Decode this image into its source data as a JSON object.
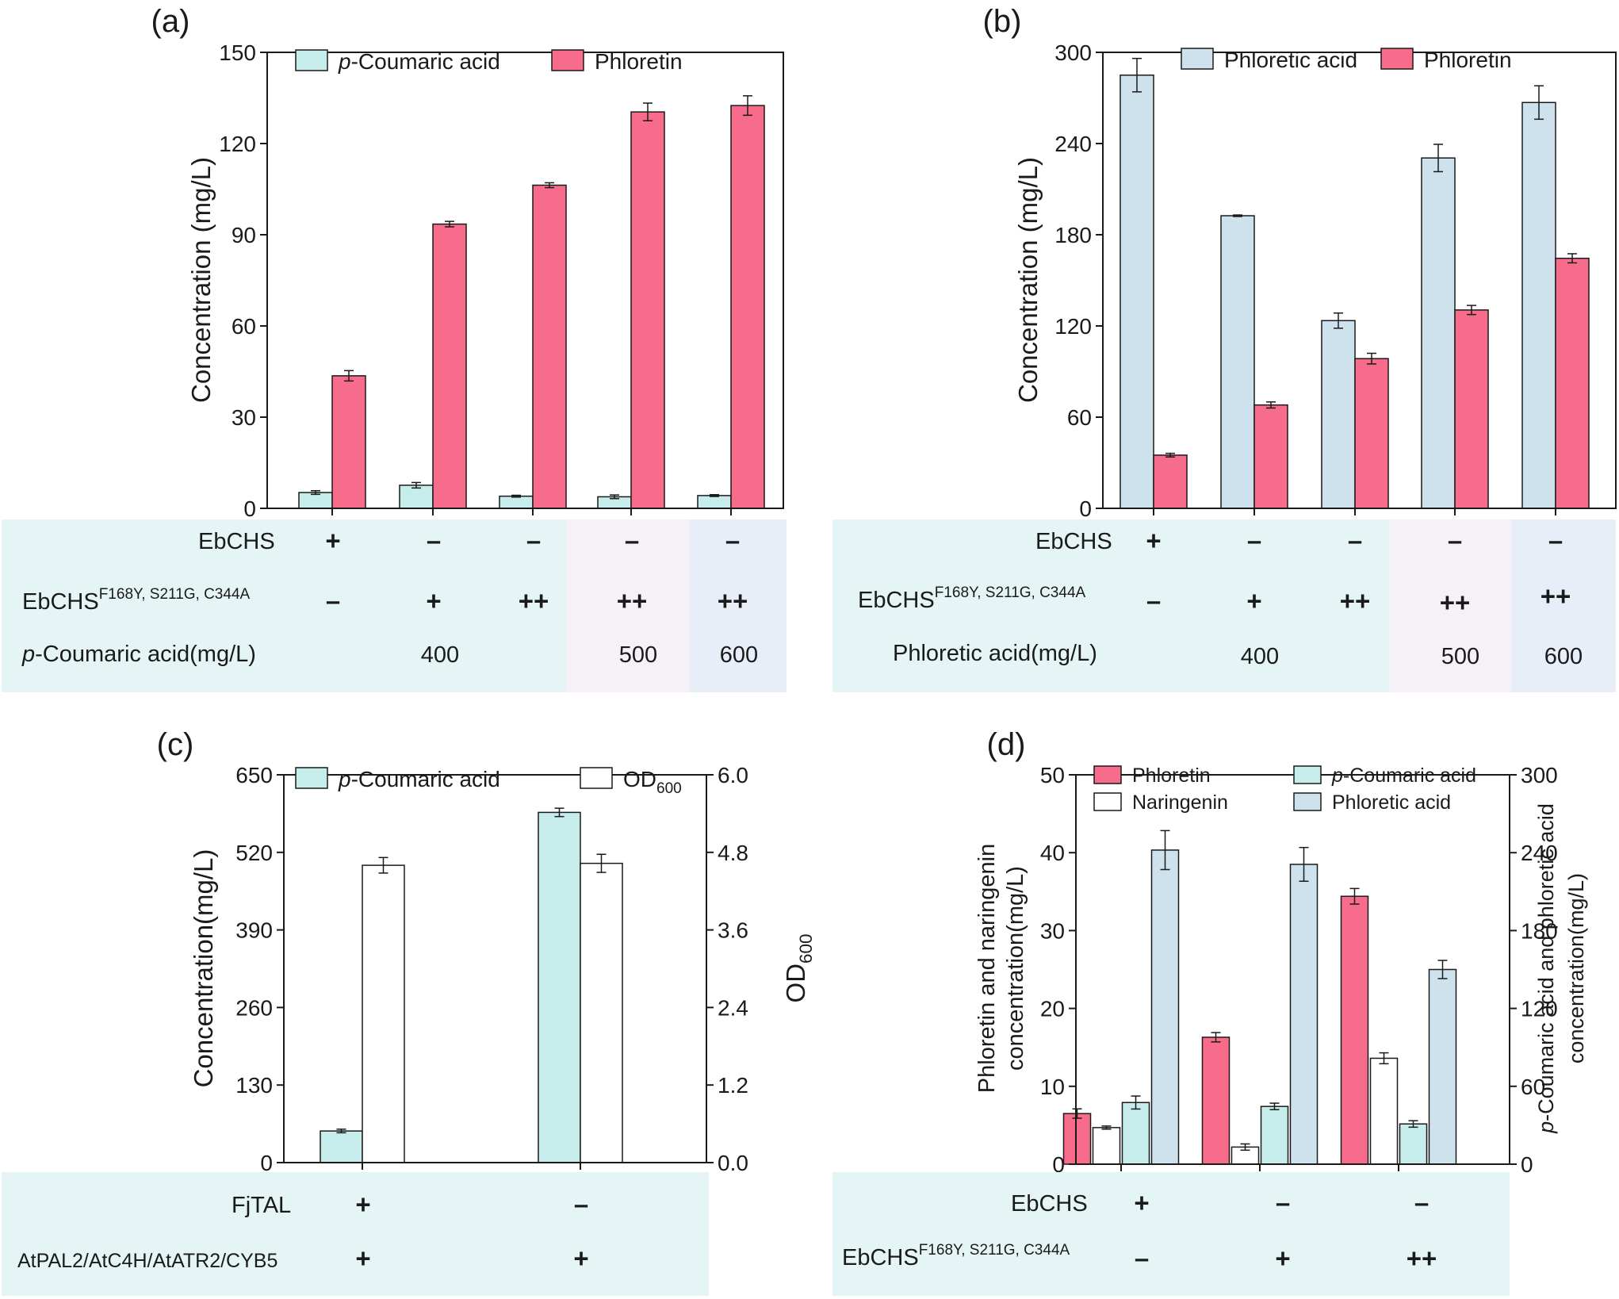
{
  "chart_data": [
    {
      "panel": "a",
      "type": "bar",
      "panel_label": "(a)",
      "ylabel": "Concentration (mg/L)",
      "ylim": [
        0,
        150
      ],
      "yticks": [
        "0",
        "30",
        "60",
        "90",
        "120",
        "150"
      ],
      "ytick_values": [
        0,
        30,
        60,
        90,
        120,
        150
      ],
      "legend": [
        {
          "name_italic": "p",
          "name": "-Coumaric acid",
          "color": "#c6ecec"
        },
        {
          "name_italic": "",
          "name": "Phloretin",
          "color": "#f76c8a"
        }
      ],
      "series": [
        {
          "name": "p-Coumaric acid",
          "color": "#c6ecec",
          "values": [
            5.2,
            7.6,
            4.0,
            3.8,
            4.2
          ],
          "errors": [
            0.6,
            0.9,
            0.3,
            0.6,
            0.3
          ]
        },
        {
          "name": "Phloretin",
          "color": "#f76c8a",
          "values": [
            43.6,
            93.5,
            106.3,
            130.4,
            132.5
          ],
          "errors": [
            1.7,
            0.9,
            0.8,
            2.9,
            3.2
          ]
        }
      ],
      "conditions": {
        "rows": [
          {
            "label": "EbCHS",
            "sup": "",
            "marks": [
              "+",
              "–",
              "–",
              "–",
              "–"
            ]
          },
          {
            "label": "EbCHS",
            "sup": "F168Y, S211G, C344A",
            "marks": [
              "–",
              "+",
              "++",
              "++",
              "++"
            ]
          }
        ],
        "conc_label_italic": "p",
        "conc_label": "-Coumaric acid(mg/L)",
        "conc_values": [
          "400",
          "500",
          "600"
        ]
      }
    },
    {
      "panel": "b",
      "type": "bar",
      "panel_label": "(b)",
      "ylabel": "Concentration (mg/L)",
      "ylim": [
        0,
        300
      ],
      "yticks": [
        "0",
        "60",
        "120",
        "180",
        "240",
        "300"
      ],
      "ytick_values": [
        0,
        60,
        120,
        180,
        240,
        300
      ],
      "legend": [
        {
          "name_italic": "",
          "name": "Phloretic acid",
          "color": "#cde2ed"
        },
        {
          "name_italic": "",
          "name": "Phloretin",
          "color": "#f76c8a"
        }
      ],
      "series": [
        {
          "name": "Phloretic acid",
          "color": "#cde2ed",
          "values": [
            285,
            192.5,
            123.5,
            230.5,
            267
          ],
          "errors": [
            11,
            0.5,
            5,
            9,
            11
          ]
        },
        {
          "name": "Phloretin",
          "color": "#f76c8a",
          "values": [
            35,
            68,
            98.5,
            130.5,
            164.5
          ],
          "errors": [
            1.2,
            2,
            3.5,
            3,
            3
          ]
        }
      ],
      "conditions": {
        "rows": [
          {
            "label": "EbCHS",
            "sup": "",
            "marks": [
              "+",
              "–",
              "–",
              "–",
              "–"
            ]
          },
          {
            "label": "EbCHS",
            "sup": "F168Y, S211G, C344A",
            "marks": [
              "–",
              "+",
              "++",
              "++",
              "++"
            ]
          }
        ],
        "conc_label_italic": "",
        "conc_label": "Phloretic acid(mg/L)",
        "conc_values": [
          "400",
          "500",
          "600"
        ]
      }
    },
    {
      "panel": "c",
      "type": "bar",
      "panel_label": "(c)",
      "ylabel": "Concentration(mg/L)",
      "ylim": [
        0,
        650
      ],
      "yticks": [
        "0",
        "130",
        "260",
        "390",
        "520",
        "650"
      ],
      "ytick_values": [
        0,
        130,
        260,
        390,
        520,
        650
      ],
      "y2label_main": "OD",
      "y2label_sub": "600",
      "y2lim": [
        0,
        6.0
      ],
      "y2ticks": [
        "0.0",
        "1.2",
        "2.4",
        "3.6",
        "4.8",
        "6.0"
      ],
      "y2tick_values": [
        0,
        1.2,
        2.4,
        3.6,
        4.8,
        6.0
      ],
      "legend": [
        {
          "name_italic": "p",
          "name": "-Coumaric acid",
          "sub": "",
          "color": "#c6ecec"
        },
        {
          "name_italic": "",
          "name": "OD",
          "sub": "600",
          "color": "#ffffff"
        }
      ],
      "series": [
        {
          "name": "p-Coumaric acid",
          "axis": "left",
          "color": "#c6ecec",
          "values": [
            53,
            587
          ],
          "errors": [
            3,
            7
          ]
        },
        {
          "name": "OD600",
          "axis": "right",
          "color": "#ffffff",
          "values": [
            4.6,
            4.63
          ],
          "errors": [
            0.12,
            0.14
          ]
        }
      ],
      "conditions": {
        "rows": [
          {
            "label": "FjTAL",
            "sup": "",
            "marks": [
              "+",
              "–"
            ]
          },
          {
            "label": "AtPAL2/AtC4H/AtATR2/CYB5",
            "sup": "",
            "marks": [
              "+",
              "+"
            ]
          }
        ]
      }
    },
    {
      "panel": "d",
      "type": "bar",
      "panel_label": "(d)",
      "ylabel_line1": "Phloretin and naringenin",
      "ylabel_line2": "concentration(mg/L)",
      "ylim": [
        0,
        50
      ],
      "yticks": [
        "0",
        "10",
        "20",
        "30",
        "40",
        "50"
      ],
      "ytick_values": [
        0,
        10,
        20,
        30,
        40,
        50
      ],
      "y2label_line1_italic": "p",
      "y2label_line1": "-Coumaric acid and phloretic acid",
      "y2label_line2": "concentration(mg/L)",
      "y2lim": [
        0,
        300
      ],
      "y2ticks": [
        "0",
        "60",
        "120",
        "180",
        "240",
        "300"
      ],
      "y2tick_values": [
        0,
        60,
        120,
        180,
        240,
        300
      ],
      "legend": [
        {
          "name_italic": "",
          "name": "Phloretin",
          "color": "#f76c8a"
        },
        {
          "name_italic": "",
          "name": "Naringenin",
          "color": "#ffffff"
        },
        {
          "name_italic": "p",
          "name": "-Coumaric acid",
          "color": "#c6ecec"
        },
        {
          "name_italic": "",
          "name": "Phloretic acid",
          "color": "#cde2ed"
        }
      ],
      "series": [
        {
          "name": "Phloretin",
          "axis": "left",
          "color": "#f76c8a",
          "values": [
            6.5,
            16.3,
            34.4
          ],
          "errors": [
            0.6,
            0.6,
            1.0
          ]
        },
        {
          "name": "Naringenin",
          "axis": "left",
          "color": "#ffffff",
          "values": [
            4.7,
            2.2,
            13.6
          ],
          "errors": [
            0.2,
            0.4,
            0.7
          ]
        },
        {
          "name": "p-Coumaric acid",
          "axis": "right",
          "color": "#c6ecec",
          "values": [
            47.5,
            44.5,
            31
          ],
          "errors": [
            5,
            2.5,
            2.5
          ]
        },
        {
          "name": "Phloretic acid",
          "axis": "right",
          "color": "#cde2ed",
          "values": [
            242,
            231,
            150
          ],
          "errors": [
            15,
            13,
            7
          ]
        }
      ],
      "conditions": {
        "rows": [
          {
            "label": "EbCHS",
            "sup": "",
            "marks": [
              "+",
              "–",
              "–"
            ]
          },
          {
            "label": "EbCHS",
            "sup": "F168Y, S211G, C344A",
            "marks": [
              "–",
              "+",
              "++"
            ]
          }
        ]
      }
    }
  ]
}
